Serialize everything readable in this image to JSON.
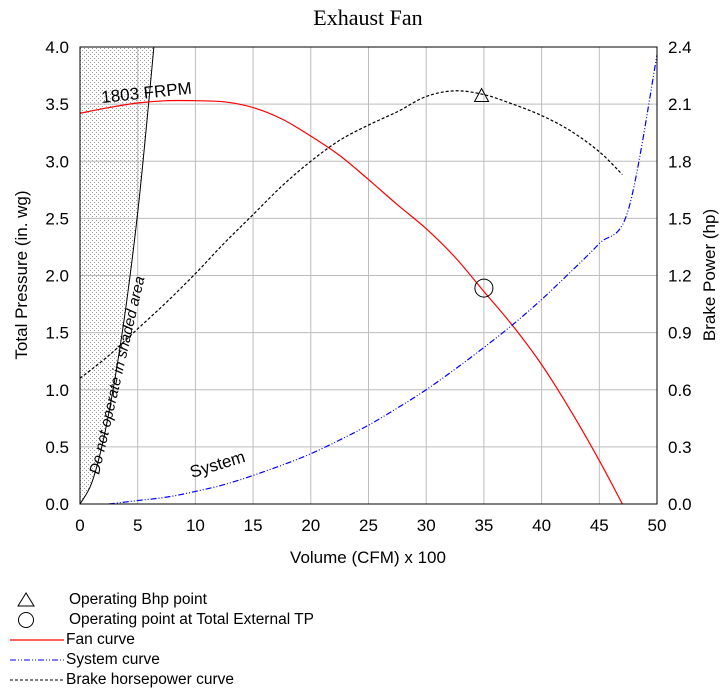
{
  "chart_data": {
    "type": "line",
    "title": "Exhaust Fan",
    "xlabel": "Volume (CFM) x 100",
    "ylabel": "Total Pressure (in. wg)",
    "y2label": "Brake Power (hp)",
    "xlim": [
      0,
      50
    ],
    "ylim": [
      0,
      4.0
    ],
    "y2lim": [
      0,
      2.4
    ],
    "x_ticks": [
      0,
      5,
      10,
      15,
      20,
      25,
      30,
      35,
      40,
      45,
      50
    ],
    "y_ticks": [
      "0.0",
      "0.5",
      "1.0",
      "1.5",
      "2.0",
      "2.5",
      "3.0",
      "3.5",
      "4.0"
    ],
    "y2_ticks": [
      "0.0",
      "0.3",
      "0.6",
      "0.9",
      "1.2",
      "1.5",
      "1.8",
      "2.1",
      "2.4"
    ],
    "grid": true,
    "series": [
      {
        "name": "Fan curve",
        "axis": "left",
        "color": "#ff0000",
        "style": "solid",
        "x": [
          0,
          2.5,
          5,
          7.5,
          10,
          12.5,
          15,
          17.5,
          20,
          22.5,
          25,
          27.5,
          30,
          32.5,
          35,
          37.5,
          40,
          42.5,
          45,
          47
        ],
        "y": [
          3.42,
          3.47,
          3.51,
          3.53,
          3.53,
          3.52,
          3.47,
          3.37,
          3.22,
          3.05,
          2.84,
          2.62,
          2.41,
          2.16,
          1.86,
          1.56,
          1.22,
          0.82,
          0.38,
          0.0
        ]
      },
      {
        "name": "System curve",
        "axis": "left",
        "color": "#0000ff",
        "style": "dash-dot-dot",
        "x": [
          2.5,
          5,
          7.5,
          10,
          12.5,
          15,
          17.5,
          20,
          22.5,
          25,
          27.5,
          30,
          32.5,
          35,
          37.5,
          40,
          42.5,
          45,
          47.5,
          50
        ],
        "y": [
          0.0,
          0.03,
          0.06,
          0.11,
          0.17,
          0.25,
          0.34,
          0.44,
          0.56,
          0.69,
          0.84,
          1.0,
          1.18,
          1.37,
          1.57,
          1.79,
          2.03,
          2.28,
          2.57,
          3.93
        ]
      },
      {
        "name": "Brake horsepower curve",
        "axis": "right",
        "color": "#000000",
        "style": "dashed",
        "x": [
          0,
          2.5,
          5,
          7.5,
          10,
          12.5,
          15,
          17.5,
          20,
          22.5,
          25,
          27.5,
          30,
          32.5,
          35,
          37.5,
          40,
          42.5,
          45,
          47
        ],
        "y": [
          0.66,
          0.78,
          0.92,
          1.06,
          1.21,
          1.37,
          1.52,
          1.67,
          1.8,
          1.91,
          1.99,
          2.06,
          2.14,
          2.17,
          2.15,
          2.1,
          2.04,
          1.96,
          1.85,
          1.73
        ]
      }
    ],
    "operating_bhp_point": {
      "x": 34.8,
      "y2": 2.14
    },
    "operating_tp_point": {
      "x": 35,
      "y": 1.89
    },
    "limit_curve": {
      "x": [
        0,
        1,
        2,
        3,
        4,
        5,
        5.8,
        6.4
      ],
      "y": [
        0.0,
        0.18,
        0.55,
        1.08,
        1.74,
        2.55,
        3.35,
        4.0
      ]
    },
    "annotations": {
      "rpm": "1803  FRPM",
      "system": "System",
      "shaded": "Do  not   operate  in  shaded    area"
    },
    "legend": [
      {
        "symbol": "triangle",
        "label": "Operating Bhp point"
      },
      {
        "symbol": "circle",
        "label": "Operating point at Total External TP"
      },
      {
        "symbol": "red-line",
        "label": "Fan curve"
      },
      {
        "symbol": "blue-dashdot",
        "label": "System curve"
      },
      {
        "symbol": "black-dashed",
        "label": "Brake horsepower curve"
      }
    ]
  }
}
